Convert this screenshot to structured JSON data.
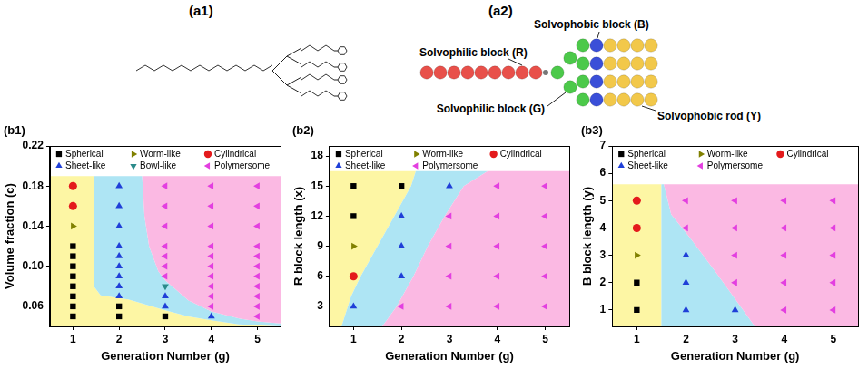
{
  "panels": [
    {
      "label": "(a1)"
    },
    {
      "label": "(a2)",
      "annotations": [
        "Solvophilic block (R)",
        "Solvophilic block (G)",
        "Solvophobic block (B)",
        "Solvophobic rod (Y)"
      ]
    }
  ],
  "chart_data": [
    {
      "panel": "(b1)",
      "type": "scatter",
      "x_label": "Generation Number (g)",
      "y_label": "Volume fraction (c)",
      "xlim": [
        0.5,
        5.5
      ],
      "xticks": [
        1,
        2,
        3,
        4,
        5
      ],
      "ylim": [
        0.04,
        0.22
      ],
      "yticks": [
        0.06,
        {
          "value": 0.1,
          "label": "0.10"
        },
        0.14,
        0.18,
        0.22
      ],
      "grid": false,
      "legend": "top",
      "series": [
        {
          "name": "Spherical",
          "color": "#000000",
          "marker": "square",
          "x": [
            1,
            1,
            1,
            1,
            1,
            1,
            1,
            1,
            2,
            2,
            3
          ],
          "y": [
            0.12,
            0.11,
            0.1,
            0.09,
            0.08,
            0.07,
            0.06,
            0.05,
            0.06,
            0.05,
            0.05
          ]
        },
        {
          "name": "Worm-like",
          "color": "#808000",
          "marker": "triangle-right",
          "x": [
            1
          ],
          "y": [
            0.14
          ]
        },
        {
          "name": "Cylindrical",
          "color": "#e41a1c",
          "marker": "circle",
          "x": [
            1,
            1
          ],
          "y": [
            0.18,
            0.16
          ]
        },
        {
          "name": "Sheet-like",
          "color": "#1f3fd8",
          "marker": "triangle-up",
          "x": [
            2,
            2,
            2,
            2,
            2,
            2,
            2,
            2,
            2,
            3,
            3,
            4
          ],
          "y": [
            0.18,
            0.16,
            0.14,
            0.12,
            0.11,
            0.1,
            0.09,
            0.08,
            0.07,
            0.07,
            0.06,
            0.05
          ]
        },
        {
          "name": "Bowl-like",
          "color": "#2a8a8a",
          "marker": "triangle-down",
          "x": [
            3
          ],
          "y": [
            0.08
          ]
        },
        {
          "name": "Polymersome",
          "color": "#e33fe0",
          "marker": "triangle-left",
          "x": [
            3,
            3,
            3,
            3,
            3,
            3,
            3,
            4,
            4,
            4,
            4,
            4,
            4,
            4,
            4,
            4,
            4,
            5,
            5,
            5,
            5,
            5,
            5,
            5,
            5,
            5,
            5,
            5
          ],
          "y": [
            0.18,
            0.16,
            0.14,
            0.12,
            0.11,
            0.1,
            0.09,
            0.18,
            0.16,
            0.14,
            0.12,
            0.11,
            0.1,
            0.09,
            0.08,
            0.07,
            0.06,
            0.18,
            0.16,
            0.14,
            0.12,
            0.11,
            0.1,
            0.09,
            0.08,
            0.07,
            0.06,
            0.05
          ]
        }
      ],
      "regions": [
        {
          "color": "#fdf6a4",
          "x": [
            0.5,
            1.45,
            1.45,
            1.6,
            2.2,
            3.0,
            3.5,
            4.0,
            4.6,
            5.5,
            5.5,
            0.5
          ],
          "y": [
            0.19,
            0.19,
            0.08,
            0.071,
            0.067,
            0.056,
            0.05,
            0.046,
            0.042,
            0.04,
            0.04,
            0.04
          ]
        },
        {
          "color": "#aee5f4",
          "x": [
            1.45,
            2.5,
            2.55,
            2.65,
            2.85,
            3.0,
            3.5,
            4.0,
            4.6,
            5.0,
            5.5,
            5.5,
            4.6,
            4.0,
            3.5,
            3.0,
            2.2,
            1.6,
            1.45
          ],
          "y": [
            0.19,
            0.19,
            0.15,
            0.12,
            0.095,
            0.086,
            0.066,
            0.055,
            0.048,
            0.045,
            0.043,
            0.04,
            0.042,
            0.046,
            0.05,
            0.056,
            0.067,
            0.071,
            0.08
          ]
        },
        {
          "color": "#fbb9e3",
          "x": [
            2.5,
            5.5,
            5.5,
            5.0,
            4.6,
            4.0,
            3.5,
            3.0,
            2.85,
            2.65,
            2.55
          ],
          "y": [
            0.19,
            0.19,
            0.043,
            0.045,
            0.048,
            0.055,
            0.066,
            0.086,
            0.095,
            0.12,
            0.15
          ]
        }
      ]
    },
    {
      "panel": "(b2)",
      "type": "scatter",
      "x_label": "Generation Number (g)",
      "y_label": "R block length (x)",
      "xlim": [
        0.5,
        5.5
      ],
      "xticks": [
        1,
        2,
        3,
        4,
        5
      ],
      "ylim": [
        1,
        19
      ],
      "yticks": [
        3,
        6,
        9,
        12,
        15,
        18
      ],
      "grid": false,
      "legend": "top",
      "series": [
        {
          "name": "Spherical",
          "color": "#000000",
          "marker": "square",
          "x": [
            1,
            1,
            2
          ],
          "y": [
            15,
            12,
            15
          ]
        },
        {
          "name": "Worm-like",
          "color": "#808000",
          "marker": "triangle-right",
          "x": [
            1
          ],
          "y": [
            9
          ]
        },
        {
          "name": "Cylindrical",
          "color": "#e41a1c",
          "marker": "circle",
          "x": [
            1
          ],
          "y": [
            6
          ]
        },
        {
          "name": "Sheet-like",
          "color": "#1f3fd8",
          "marker": "triangle-up",
          "x": [
            1,
            2,
            2,
            2,
            3
          ],
          "y": [
            3,
            12,
            9,
            6,
            15
          ]
        },
        {
          "name": "Polymersome",
          "color": "#e33fe0",
          "marker": "triangle-left",
          "x": [
            2,
            3,
            3,
            3,
            3,
            4,
            4,
            4,
            4,
            4,
            5,
            5,
            5,
            5,
            5
          ],
          "y": [
            3,
            12,
            9,
            6,
            3,
            15,
            12,
            9,
            6,
            3,
            15,
            12,
            9,
            6,
            3
          ]
        }
      ],
      "regions": [
        {
          "color": "#fdf6a4",
          "x": [
            0.5,
            2.3,
            2.2,
            1.85,
            1.5,
            1.15,
            0.95,
            0.75,
            0.5
          ],
          "y": [
            16.5,
            16.5,
            15,
            12,
            9,
            6,
            4,
            1,
            1
          ]
        },
        {
          "color": "#aee5f4",
          "x": [
            2.3,
            3.8,
            3.3,
            2.9,
            2.55,
            2.25,
            1.9,
            1.6,
            0.75,
            0.95,
            1.15,
            1.5,
            1.85,
            2.2
          ],
          "y": [
            16.5,
            16.5,
            15,
            12,
            9,
            6,
            3,
            1,
            1,
            4,
            6,
            9,
            12,
            15
          ]
        },
        {
          "color": "#fbb9e3",
          "x": [
            3.8,
            5.5,
            5.5,
            1.6,
            1.9,
            2.25,
            2.55,
            2.9,
            3.3
          ],
          "y": [
            16.5,
            16.5,
            1,
            1,
            3,
            6,
            9,
            12,
            15
          ]
        }
      ]
    },
    {
      "panel": "(b3)",
      "type": "scatter",
      "x_label": "Generation Number (g)",
      "y_label": "B block length (y)",
      "xlim": [
        0.5,
        5.5
      ],
      "xticks": [
        1,
        2,
        3,
        4,
        5
      ],
      "ylim": [
        0.4,
        7
      ],
      "yticks": [
        1,
        2,
        3,
        4,
        5,
        6,
        7
      ],
      "grid": false,
      "legend": "top",
      "series": [
        {
          "name": "Spherical",
          "color": "#000000",
          "marker": "square",
          "x": [
            1,
            1
          ],
          "y": [
            1,
            2
          ]
        },
        {
          "name": "Worm-like",
          "color": "#808000",
          "marker": "triangle-right",
          "x": [
            1
          ],
          "y": [
            3
          ]
        },
        {
          "name": "Cylindrical",
          "color": "#e41a1c",
          "marker": "circle",
          "x": [
            1,
            1
          ],
          "y": [
            5,
            4
          ]
        },
        {
          "name": "Sheet-like",
          "color": "#1f3fd8",
          "marker": "triangle-up",
          "x": [
            2,
            2,
            2,
            3
          ],
          "y": [
            3,
            2,
            1,
            1
          ]
        },
        {
          "name": "Polymersome",
          "color": "#e33fe0",
          "marker": "triangle-left",
          "x": [
            2,
            2,
            3,
            3,
            3,
            3,
            4,
            4,
            4,
            4,
            4,
            5,
            5,
            5,
            5,
            5
          ],
          "y": [
            5,
            4,
            5,
            4,
            3,
            2,
            5,
            4,
            3,
            2,
            1,
            5,
            4,
            3,
            2,
            1
          ]
        }
      ],
      "regions": [
        {
          "color": "#fdf6a4",
          "x": [
            0.5,
            1.5,
            1.5,
            0.5
          ],
          "y": [
            5.6,
            5.6,
            0.4,
            0.4
          ]
        },
        {
          "color": "#aee5f4",
          "x": [
            1.5,
            1.55,
            1.7,
            2.1,
            2.6,
            3.0,
            3.4,
            1.5
          ],
          "y": [
            5.6,
            5.6,
            4.5,
            3.6,
            2.4,
            1.4,
            0.4,
            0.4
          ]
        },
        {
          "color": "#fbb9e3",
          "x": [
            1.55,
            5.5,
            5.5,
            3.4,
            3.0,
            2.6,
            2.1,
            1.7
          ],
          "y": [
            5.6,
            5.6,
            0.4,
            0.4,
            1.4,
            2.4,
            3.6,
            4.5
          ]
        }
      ]
    }
  ]
}
